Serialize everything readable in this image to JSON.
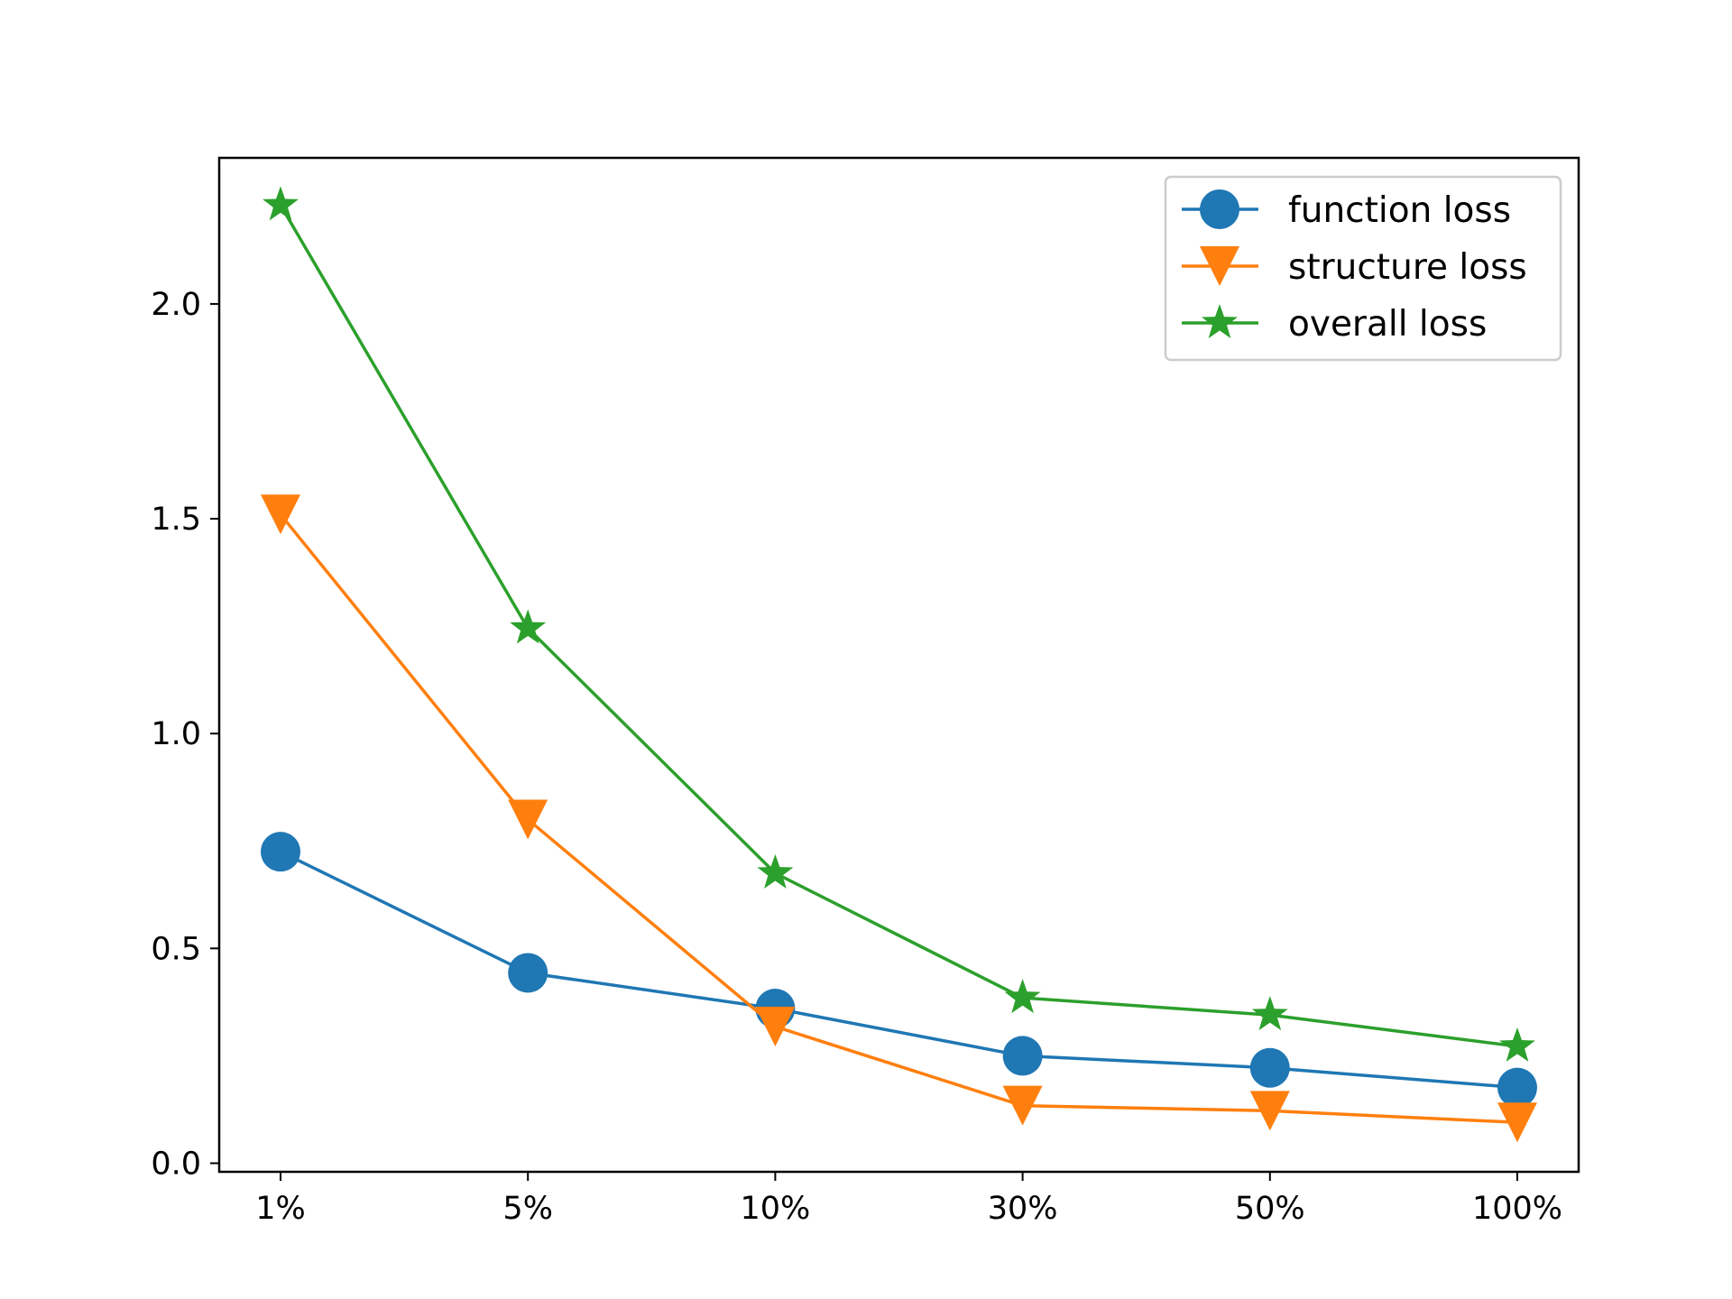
{
  "chart_data": {
    "type": "line",
    "title": "",
    "xlabel": "",
    "ylabel": "",
    "categories": [
      "1%",
      "5%",
      "10%",
      "30%",
      "50%",
      "100%"
    ],
    "ylim": [
      -0.02,
      2.34
    ],
    "yticks": [
      "0.0",
      "0.5",
      "1.0",
      "1.5",
      "2.0"
    ],
    "grid": false,
    "legend_position": "top-right",
    "series": [
      {
        "name": "function loss",
        "values": [
          0.725,
          0.443,
          0.36,
          0.25,
          0.222,
          0.176
        ],
        "color": "#1f77b4",
        "marker": "circle"
      },
      {
        "name": "structure loss",
        "values": [
          1.51,
          0.8,
          0.318,
          0.134,
          0.122,
          0.095
        ],
        "color": "#ff7f0e",
        "marker": "triangle-down"
      },
      {
        "name": "overall loss",
        "values": [
          2.23,
          1.245,
          0.675,
          0.385,
          0.345,
          0.272
        ],
        "color": "#2ca02c",
        "marker": "star"
      }
    ]
  }
}
